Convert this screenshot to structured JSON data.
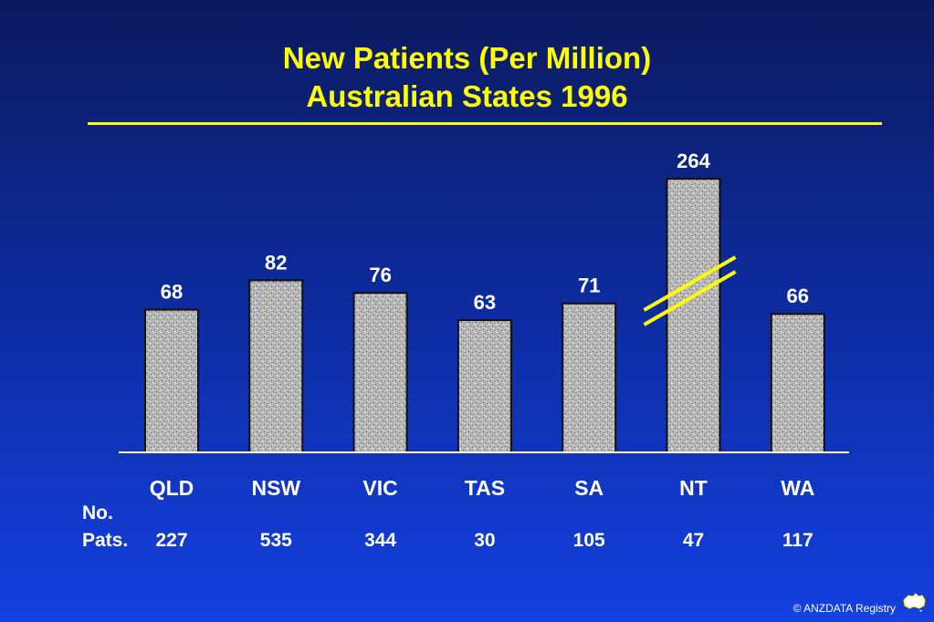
{
  "chart_data": {
    "type": "bar",
    "title": "New Patients  (Per  Million)",
    "subtitle": "Australian States  1996",
    "categories": [
      "QLD",
      "NSW",
      "VIC",
      "TAS",
      "SA",
      "NT",
      "WA"
    ],
    "values": [
      68,
      82,
      76,
      63,
      71,
      264,
      66
    ],
    "data_labels": [
      "68",
      "82",
      "76",
      "63",
      "71",
      "264",
      "66"
    ],
    "broken_axis_category": "NT",
    "secondary_row": {
      "label_line1": "No.",
      "label_line2": "Pats.",
      "values": [
        "227",
        "535",
        "344",
        "30",
        "105",
        "47",
        "117"
      ]
    },
    "grid": false,
    "legend": "none"
  },
  "footer": {
    "copyright": "© ANZDATA Registry"
  },
  "colors": {
    "background_top": "#0b1a5e",
    "background_bottom": "#1440e0",
    "title": "#ffff00",
    "text": "#ffffff",
    "bar_fill": "#b8b8b8",
    "axis_break": "#ffff00"
  },
  "icons": {
    "logo": "australia-map-logo-icon"
  }
}
